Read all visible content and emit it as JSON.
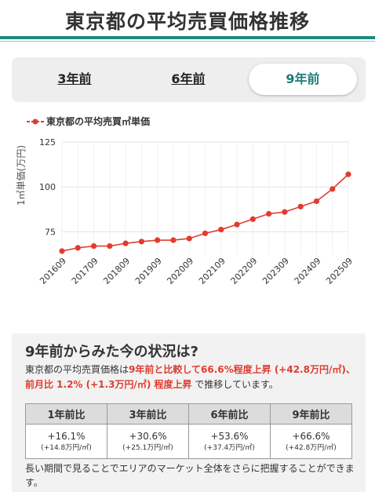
{
  "header": {
    "title": "東京都の平均売買価格推移"
  },
  "tabs": [
    {
      "label": "3年前",
      "active": false
    },
    {
      "label": "6年前",
      "active": false
    },
    {
      "label": "9年前",
      "active": true
    }
  ],
  "colors": {
    "accent": "#1d8a7e",
    "series": "#e03c2f"
  },
  "chart_data": {
    "type": "line",
    "ylabel": "1㎡単価(万円)",
    "ylim": [
      62,
      125
    ],
    "yticks": [
      75,
      100,
      125
    ],
    "grid": true,
    "legend_placement": "top-left",
    "x": [
      "201609",
      "201703",
      "201709",
      "201803",
      "201809",
      "201903",
      "201909",
      "202003",
      "202009",
      "202103",
      "202109",
      "202203",
      "202209",
      "202303",
      "202309",
      "202403",
      "202409",
      "202503",
      "202509"
    ],
    "xtick_labels": [
      "201609",
      "201709",
      "201809",
      "201909",
      "202009",
      "202109",
      "202209",
      "202309",
      "202409",
      "202509"
    ],
    "series": [
      {
        "name": "東京都の平均売買㎡単価",
        "values": [
          64.2,
          66.0,
          67.0,
          67.0,
          68.5,
          69.5,
          70.3,
          70.3,
          71.2,
          74.1,
          76.2,
          79.0,
          82.0,
          85.0,
          86.0,
          89.0,
          92.0,
          98.8,
          107.0
        ]
      }
    ]
  },
  "info": {
    "title": "9年前からみた今の状況は?",
    "text": {
      "p1": "東京都の平均売買価格は",
      "h1": "9年前と比較して66.6%程度上昇 (+42.8万円/㎡)",
      "p2": "、",
      "h2": "前月比 1.2% (+1.3万円/㎡) 程度上昇",
      "p3": " で推移しています。"
    },
    "table": {
      "headers": [
        "1年前比",
        "3年前比",
        "6年前比",
        "9年前比"
      ],
      "pct": [
        "+16.1%",
        "+30.6%",
        "+53.6%",
        "+66.6%"
      ],
      "amt": [
        "(+14.8万円/㎡)",
        "(+25.1万円/㎡)",
        "(+37.4万円/㎡)",
        "(+42.8万円/㎡)"
      ]
    },
    "note": "長い期間で見ることでエリアのマーケット全体をさらに把握することができます。"
  }
}
